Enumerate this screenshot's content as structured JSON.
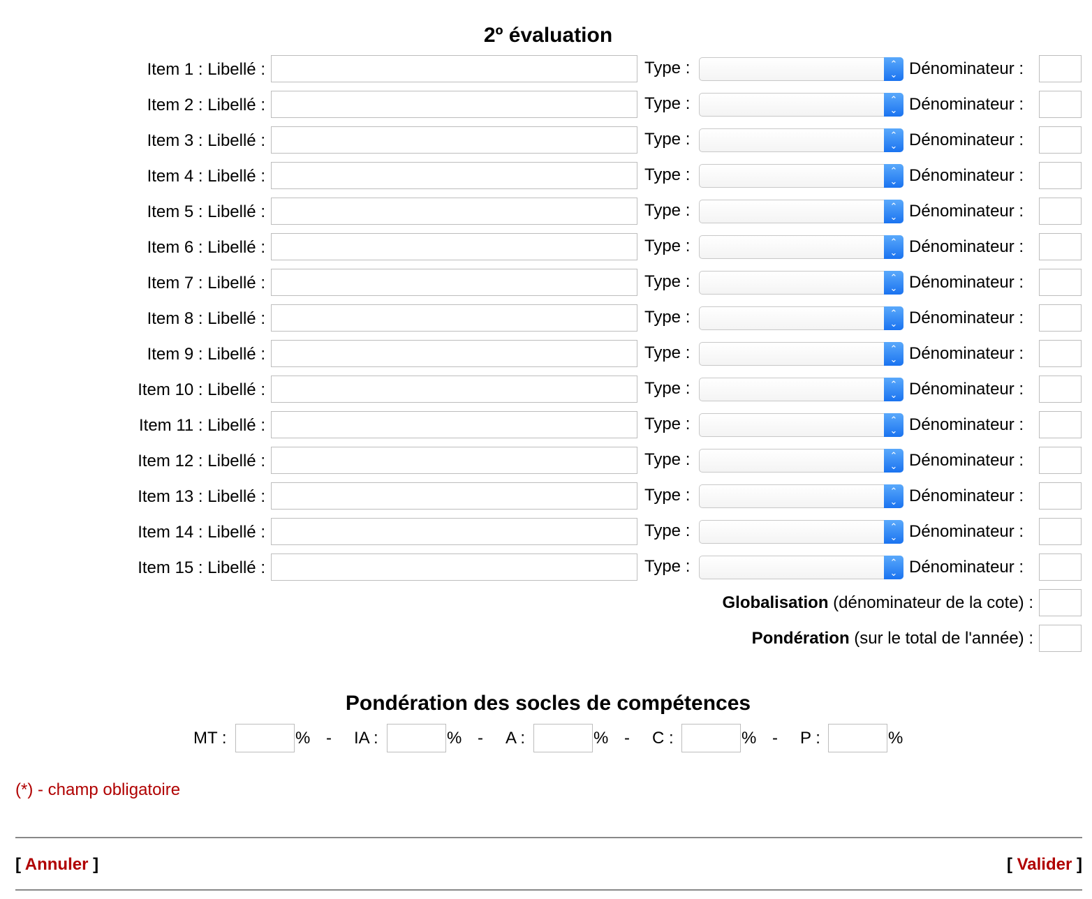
{
  "title": "2º évaluation",
  "item_label_suffix": " : Libellé :",
  "items": [
    "Item 1",
    "Item 2",
    "Item 3",
    "Item 4",
    "Item 5",
    "Item 6",
    "Item 7",
    "Item 8",
    "Item 9",
    "Item 10",
    "Item 11",
    "Item 12",
    "Item 13",
    "Item 14",
    "Item 15"
  ],
  "type_label": "Type :",
  "denominateur_label": "Dénominateur :",
  "globalisation": {
    "bold": "Globalisation",
    "rest": " (dénominateur de la cote) :"
  },
  "ponderation": {
    "bold": "Pondération",
    "rest": " (sur le total de l'année) :"
  },
  "socles": {
    "title": "Pondération des socles de compétences",
    "fields": [
      {
        "label": "MT :"
      },
      {
        "label": "IA :"
      },
      {
        "label": "A :"
      },
      {
        "label": "C :"
      },
      {
        "label": "P :"
      }
    ],
    "unit": "%",
    "separator": "-"
  },
  "required_note": "(*) - champ obligatoire",
  "cancel_label": "Annuler",
  "submit_label": "Valider",
  "colors": {
    "link": "#b00000",
    "select_arrow": "#1a73f0"
  }
}
